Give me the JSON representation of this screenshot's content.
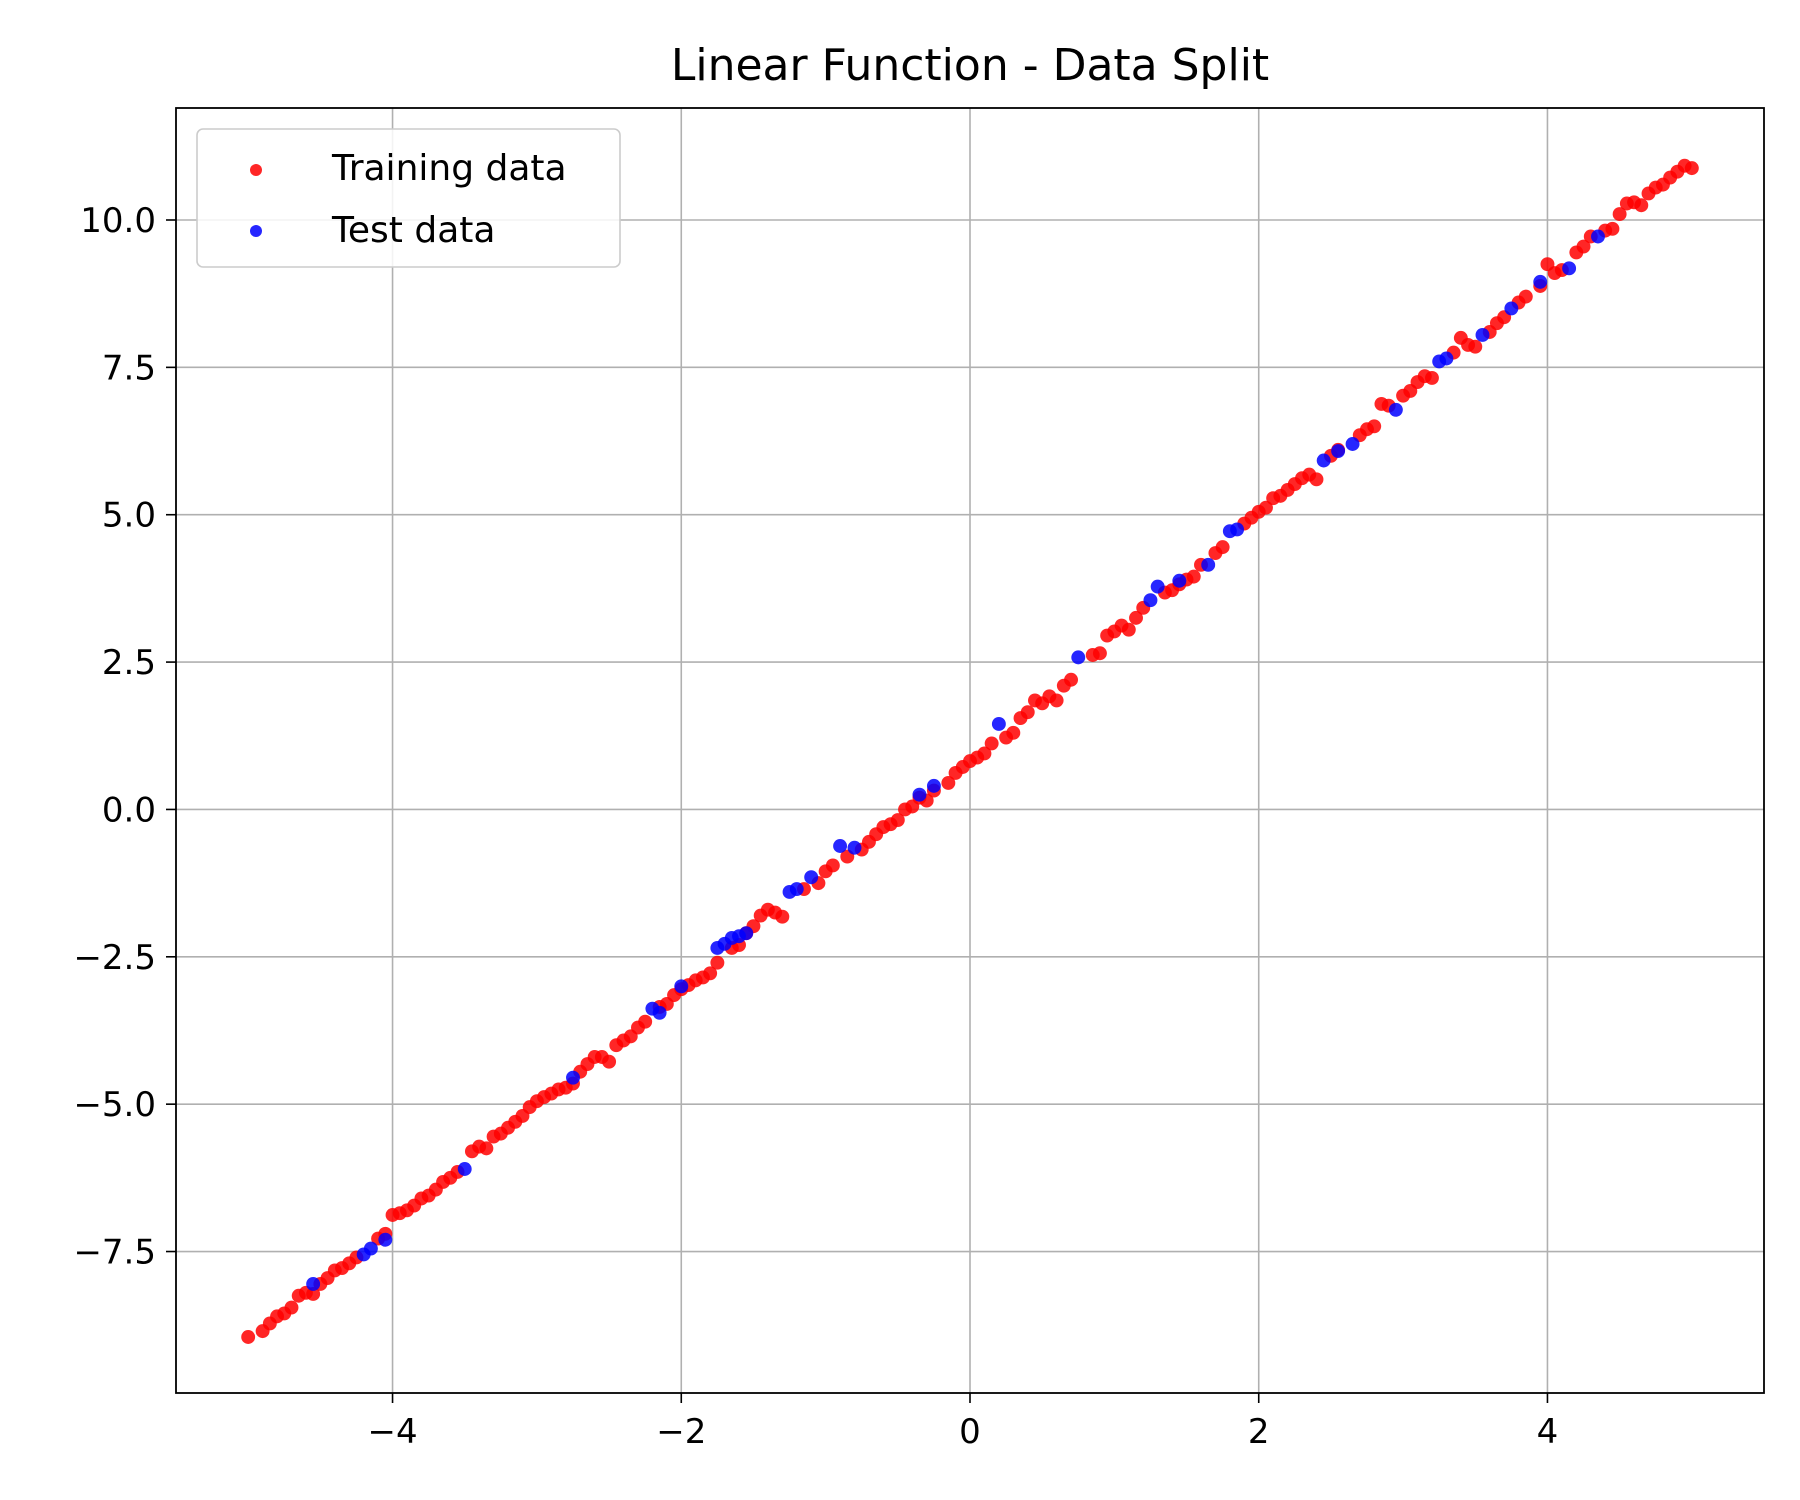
{
  "chart_data": {
    "type": "scatter",
    "title": "Linear Function - Data Split",
    "xlabel": "",
    "ylabel": "",
    "xlim": [
      -5.5,
      5.5
    ],
    "ylim": [
      -9.9,
      11.9
    ],
    "xticks": [
      -4,
      -2,
      0,
      2,
      4
    ],
    "xtick_labels": [
      "−4",
      "−2",
      "0",
      "2",
      "4"
    ],
    "yticks": [
      -7.5,
      -5.0,
      -2.5,
      0.0,
      2.5,
      5.0,
      7.5,
      10.0
    ],
    "ytick_labels": [
      "−7.5",
      "−5.0",
      "−2.5",
      "0.0",
      "2.5",
      "5.0",
      "7.5",
      "10.0"
    ],
    "grid": true,
    "legend_position": "top-left",
    "series": [
      {
        "name": "Training data",
        "color": "#ff0000",
        "x": [
          -5.0,
          -4.9,
          -4.85,
          -4.8,
          -4.75,
          -4.7,
          -4.65,
          -4.6,
          -4.55,
          -4.5,
          -4.45,
          -4.4,
          -4.35,
          -4.3,
          -4.25,
          -4.1,
          -4.05,
          -4.0,
          -3.95,
          -3.9,
          -3.85,
          -3.8,
          -3.75,
          -3.7,
          -3.65,
          -3.6,
          -3.55,
          -3.45,
          -3.4,
          -3.35,
          -3.3,
          -3.25,
          -3.2,
          -3.15,
          -3.1,
          -3.05,
          -3.0,
          -2.95,
          -2.9,
          -2.85,
          -2.8,
          -2.75,
          -2.7,
          -2.65,
          -2.6,
          -2.55,
          -2.5,
          -2.45,
          -2.4,
          -2.35,
          -2.3,
          -2.25,
          -2.15,
          -2.1,
          -2.05,
          -2.0,
          -1.95,
          -1.9,
          -1.85,
          -1.8,
          -1.75,
          -1.65,
          -1.6,
          -1.55,
          -1.5,
          -1.45,
          -1.4,
          -1.35,
          -1.3,
          -1.15,
          -1.05,
          -1.0,
          -0.95,
          -0.85,
          -0.75,
          -0.7,
          -0.65,
          -0.6,
          -0.55,
          -0.5,
          -0.45,
          -0.4,
          -0.35,
          -0.3,
          -0.25,
          -0.15,
          -0.1,
          -0.05,
          0.0,
          0.05,
          0.1,
          0.15,
          0.25,
          0.3,
          0.35,
          0.4,
          0.45,
          0.5,
          0.55,
          0.6,
          0.65,
          0.7,
          0.85,
          0.9,
          0.95,
          1.0,
          1.05,
          1.1,
          1.15,
          1.2,
          1.35,
          1.4,
          1.45,
          1.5,
          1.55,
          1.6,
          1.7,
          1.75,
          1.9,
          1.95,
          2.0,
          2.05,
          2.1,
          2.15,
          2.2,
          2.25,
          2.3,
          2.35,
          2.4,
          2.5,
          2.55,
          2.7,
          2.75,
          2.8,
          2.85,
          2.9,
          3.0,
          3.05,
          3.1,
          3.15,
          3.2,
          3.35,
          3.4,
          3.45,
          3.5,
          3.6,
          3.65,
          3.7,
          3.8,
          3.85,
          3.95,
          4.0,
          4.05,
          4.1,
          4.2,
          4.25,
          4.3,
          4.4,
          4.45,
          4.5,
          4.55,
          4.6,
          4.65,
          4.7,
          4.75,
          4.8,
          4.85,
          4.9,
          4.95,
          5.0
        ],
        "y": [
          -8.95,
          -8.85,
          -8.72,
          -8.6,
          -8.55,
          -8.45,
          -8.25,
          -8.2,
          -8.22,
          -8.05,
          -7.95,
          -7.82,
          -7.78,
          -7.7,
          -7.6,
          -7.28,
          -7.2,
          -6.88,
          -6.85,
          -6.8,
          -6.72,
          -6.6,
          -6.55,
          -6.45,
          -6.32,
          -6.25,
          -6.15,
          -5.8,
          -5.72,
          -5.75,
          -5.55,
          -5.5,
          -5.4,
          -5.3,
          -5.2,
          -5.05,
          -4.95,
          -4.88,
          -4.82,
          -4.75,
          -4.72,
          -4.65,
          -4.45,
          -4.32,
          -4.2,
          -4.2,
          -4.28,
          -4.0,
          -3.92,
          -3.85,
          -3.7,
          -3.6,
          -3.35,
          -3.3,
          -3.15,
          -3.05,
          -2.98,
          -2.9,
          -2.85,
          -2.78,
          -2.6,
          -2.35,
          -2.3,
          -2.1,
          -1.98,
          -1.8,
          -1.7,
          -1.75,
          -1.82,
          -1.35,
          -1.25,
          -1.05,
          -0.95,
          -0.8,
          -0.68,
          -0.55,
          -0.42,
          -0.3,
          -0.25,
          -0.18,
          0.0,
          0.05,
          0.2,
          0.15,
          0.32,
          0.45,
          0.62,
          0.72,
          0.82,
          0.88,
          0.95,
          1.12,
          1.22,
          1.3,
          1.55,
          1.65,
          1.85,
          1.8,
          1.92,
          1.85,
          2.1,
          2.2,
          2.62,
          2.65,
          2.95,
          3.02,
          3.12,
          3.05,
          3.25,
          3.42,
          3.68,
          3.72,
          3.82,
          3.9,
          3.95,
          4.15,
          4.35,
          4.45,
          4.85,
          4.95,
          5.05,
          5.12,
          5.28,
          5.32,
          5.42,
          5.52,
          5.62,
          5.68,
          5.6,
          6.0,
          6.1,
          6.35,
          6.45,
          6.5,
          6.88,
          6.85,
          7.02,
          7.1,
          7.25,
          7.35,
          7.32,
          7.75,
          8.0,
          7.88,
          7.85,
          8.1,
          8.25,
          8.35,
          8.6,
          8.7,
          8.88,
          9.25,
          9.1,
          9.15,
          9.45,
          9.55,
          9.72,
          9.82,
          9.85,
          10.1,
          10.28,
          10.3,
          10.25,
          10.45,
          10.55,
          10.6,
          10.72,
          10.82,
          10.92,
          10.88
        ],
        "marker_size": 10,
        "opacity": 0.85
      },
      {
        "name": "Test data",
        "color": "#0000ff",
        "x": [
          -4.55,
          -4.2,
          -4.15,
          -4.05,
          -3.5,
          -2.75,
          -2.2,
          -2.15,
          -2.0,
          -1.75,
          -1.7,
          -1.65,
          -1.6,
          -1.55,
          -1.25,
          -1.2,
          -1.1,
          -0.9,
          -0.8,
          -0.35,
          -0.25,
          0.2,
          0.75,
          1.25,
          1.3,
          1.45,
          1.65,
          1.8,
          1.85,
          2.45,
          2.55,
          2.65,
          2.95,
          3.25,
          3.3,
          3.55,
          3.75,
          3.95,
          4.15,
          4.35
        ],
        "y": [
          -8.05,
          -7.55,
          -7.45,
          -7.3,
          -6.1,
          -4.55,
          -3.38,
          -3.45,
          -3.0,
          -2.35,
          -2.28,
          -2.18,
          -2.15,
          -2.1,
          -1.4,
          -1.35,
          -1.15,
          -0.62,
          -0.65,
          0.25,
          0.4,
          1.45,
          2.58,
          3.55,
          3.78,
          3.88,
          4.15,
          4.72,
          4.75,
          5.92,
          6.08,
          6.2,
          6.78,
          7.6,
          7.65,
          8.05,
          8.5,
          8.95,
          9.18,
          9.72
        ],
        "marker_size": 10,
        "opacity": 0.85
      }
    ]
  }
}
